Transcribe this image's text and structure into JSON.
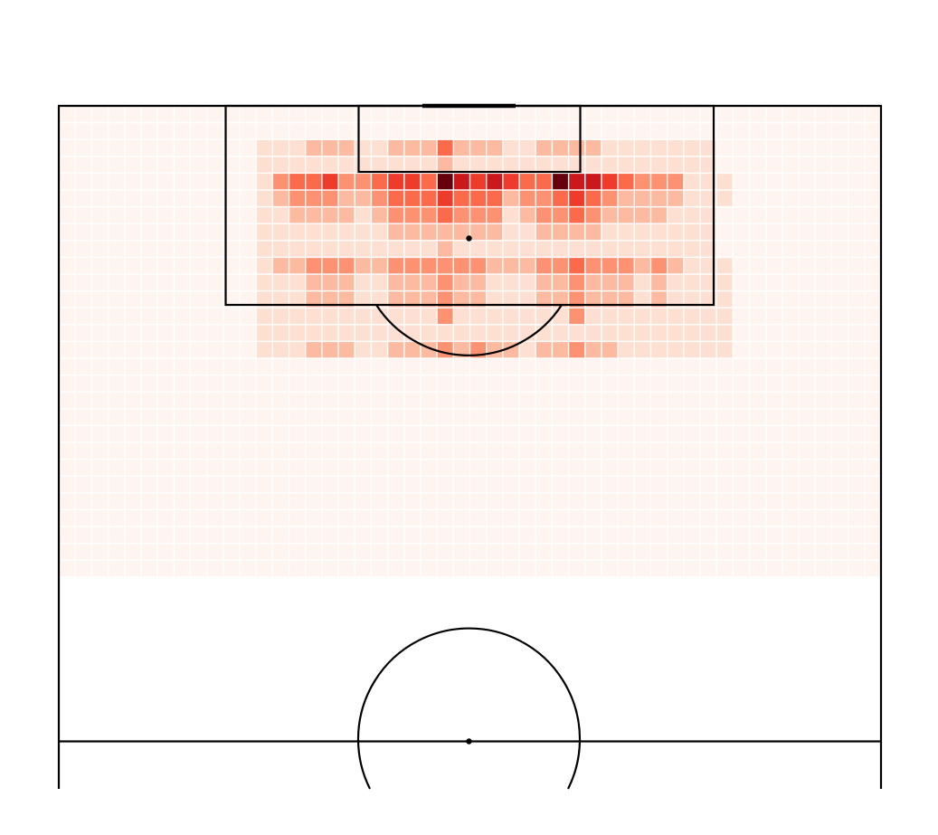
{
  "chart_data": {
    "type": "heatmap",
    "title": "",
    "xlabel": "",
    "ylabel": "",
    "grid": true,
    "colormap": [
      "#fff5f0",
      "#fee0d2",
      "#fcbba1",
      "#fc9272",
      "#fb6a4a",
      "#ef3b2c",
      "#cb181d",
      "#67000d"
    ],
    "n_cols": 50,
    "n_rows": 28,
    "value_range": [
      0,
      7
    ],
    "background_level": 0,
    "cell_levels": [
      {
        "row": 2,
        "cols": [
          12,
          13,
          14,
          15,
          16,
          17,
          18,
          19,
          20,
          21,
          22,
          23,
          24,
          25,
          26,
          27,
          28,
          29,
          30,
          31,
          32,
          33,
          34,
          35,
          36,
          37,
          38,
          39
        ],
        "level": 1
      },
      {
        "row": 2,
        "cols": [
          15,
          16,
          17,
          20,
          21,
          22,
          23,
          24,
          25,
          26,
          29,
          30,
          31,
          32
        ],
        "level": 2
      },
      {
        "row": 2,
        "cols": [
          23
        ],
        "level": 4
      },
      {
        "row": 3,
        "cols": [
          12,
          13,
          14,
          15,
          16,
          17,
          18,
          19,
          20,
          21,
          22,
          23,
          24,
          25,
          26,
          27,
          28,
          29,
          30,
          31,
          32,
          33,
          34,
          35,
          36,
          37,
          38,
          39
        ],
        "level": 1
      },
      {
        "row": 3,
        "cols": [
          23
        ],
        "level": 2
      },
      {
        "row": 4,
        "cols": [
          12,
          13,
          14,
          15,
          16,
          17,
          18,
          19,
          20,
          21,
          22,
          23,
          24,
          25,
          26,
          27,
          28,
          29,
          30,
          31,
          32,
          33,
          34,
          35,
          36,
          37,
          38,
          39,
          40
        ],
        "level": 1
      },
      {
        "row": 4,
        "cols": [
          13,
          14,
          15,
          16,
          17,
          18,
          19,
          20,
          21,
          22,
          23,
          24,
          25,
          26,
          27,
          28,
          29,
          30,
          31,
          32,
          33,
          34,
          35,
          36,
          37
        ],
        "level": 3
      },
      {
        "row": 4,
        "cols": [
          14,
          15,
          16,
          19,
          20,
          21,
          22,
          28,
          29,
          30,
          31,
          33,
          34
        ],
        "level": 4
      },
      {
        "row": 4,
        "cols": [
          16,
          20,
          21,
          24,
          25,
          26,
          27,
          31,
          33
        ],
        "level": 5
      },
      {
        "row": 4,
        "cols": [
          24,
          26,
          31,
          32
        ],
        "level": 6
      },
      {
        "row": 4,
        "cols": [
          23,
          30
        ],
        "level": 7
      },
      {
        "row": 5,
        "cols": [
          12,
          13,
          14,
          15,
          16,
          17,
          18,
          19,
          20,
          21,
          22,
          23,
          24,
          25,
          26,
          27,
          28,
          29,
          30,
          31,
          32,
          33,
          34,
          35,
          36,
          37,
          38,
          39,
          40
        ],
        "level": 1
      },
      {
        "row": 5,
        "cols": [
          13,
          14,
          15,
          16,
          17,
          18,
          19,
          20,
          21,
          22,
          23,
          24,
          25,
          26,
          27,
          28,
          29,
          30,
          31,
          32,
          33,
          34,
          35,
          36,
          37
        ],
        "level": 2
      },
      {
        "row": 5,
        "cols": [
          14,
          15,
          16,
          19,
          20,
          21,
          22,
          23,
          24,
          25,
          26,
          28,
          29,
          30,
          31,
          32,
          33
        ],
        "level": 3
      },
      {
        "row": 5,
        "cols": [
          20,
          21,
          22,
          23,
          24,
          25,
          26,
          30,
          31,
          32
        ],
        "level": 4
      },
      {
        "row": 5,
        "cols": [
          23,
          31
        ],
        "level": 5
      },
      {
        "row": 6,
        "cols": [
          12,
          13,
          14,
          15,
          16,
          17,
          18,
          19,
          20,
          21,
          22,
          23,
          24,
          25,
          26,
          27,
          28,
          29,
          30,
          31,
          32,
          33,
          34,
          35,
          36,
          37,
          38,
          39
        ],
        "level": 1
      },
      {
        "row": 6,
        "cols": [
          14,
          15,
          16,
          17,
          19,
          20,
          21,
          22,
          23,
          24,
          25,
          26,
          28,
          29,
          30,
          31,
          32,
          33,
          34,
          35,
          36
        ],
        "level": 2
      },
      {
        "row": 6,
        "cols": [
          20,
          21,
          22,
          23,
          24,
          25,
          26,
          29,
          30,
          31,
          32
        ],
        "level": 3
      },
      {
        "row": 6,
        "cols": [
          23,
          31
        ],
        "level": 4
      },
      {
        "row": 7,
        "cols": [
          12,
          13,
          14,
          15,
          16,
          17,
          18,
          19,
          20,
          21,
          22,
          23,
          24,
          25,
          26,
          27,
          28,
          29,
          30,
          31,
          32,
          33,
          34,
          35,
          36,
          37,
          38,
          39
        ],
        "level": 1
      },
      {
        "row": 7,
        "cols": [
          20,
          21,
          22,
          23,
          24,
          25,
          26,
          29,
          30,
          31,
          32
        ],
        "level": 2
      },
      {
        "row": 8,
        "cols": [
          12,
          13,
          14,
          15,
          16,
          17,
          18,
          19,
          20,
          21,
          22,
          23,
          24,
          25,
          26,
          27,
          28,
          29,
          30,
          31,
          32,
          33,
          34,
          35,
          36,
          37,
          38,
          39
        ],
        "level": 1
      },
      {
        "row": 8,
        "cols": [
          23
        ],
        "level": 2
      },
      {
        "row": 9,
        "cols": [
          12,
          13,
          14,
          15,
          16,
          17,
          18,
          19,
          20,
          21,
          22,
          23,
          24,
          25,
          26,
          27,
          28,
          29,
          30,
          31,
          32,
          33,
          34,
          35,
          36,
          37,
          38,
          39,
          40
        ],
        "level": 1
      },
      {
        "row": 9,
        "cols": [
          13,
          14,
          15,
          16,
          17,
          18,
          19,
          20,
          21,
          22,
          23,
          24,
          25,
          26,
          27,
          28,
          29,
          30,
          31,
          32,
          33,
          34,
          35,
          36,
          37
        ],
        "level": 2
      },
      {
        "row": 9,
        "cols": [
          15,
          16,
          17,
          20,
          21,
          22,
          23,
          24,
          25,
          29,
          30,
          31,
          32,
          33,
          34,
          36
        ],
        "level": 3
      },
      {
        "row": 9,
        "cols": [
          31
        ],
        "level": 4
      },
      {
        "row": 10,
        "cols": [
          12,
          13,
          14,
          15,
          16,
          17,
          18,
          19,
          20,
          21,
          22,
          23,
          24,
          25,
          26,
          27,
          28,
          29,
          30,
          31,
          32,
          33,
          34,
          35,
          36,
          37,
          38,
          39,
          40
        ],
        "level": 1
      },
      {
        "row": 10,
        "cols": [
          15,
          16,
          17,
          20,
          21,
          22,
          23,
          24,
          25,
          29,
          30,
          31,
          32,
          33,
          34,
          36
        ],
        "level": 2
      },
      {
        "row": 10,
        "cols": [
          23,
          31
        ],
        "level": 3
      },
      {
        "row": 11,
        "cols": [
          12,
          13,
          14,
          15,
          16,
          17,
          18,
          19,
          20,
          21,
          22,
          23,
          24,
          25,
          26,
          27,
          28,
          29,
          30,
          31,
          32,
          33,
          34,
          35,
          36,
          37,
          38,
          39,
          40
        ],
        "level": 1
      },
      {
        "row": 11,
        "cols": [
          15,
          16,
          17,
          20,
          21,
          22,
          23,
          24,
          25,
          29,
          30,
          31,
          32,
          33,
          34,
          36
        ],
        "level": 2
      },
      {
        "row": 11,
        "cols": [
          23,
          31
        ],
        "level": 3
      },
      {
        "row": 12,
        "cols": [
          12,
          13,
          14,
          15,
          16,
          17,
          18,
          19,
          20,
          21,
          22,
          23,
          24,
          25,
          26,
          27,
          28,
          29,
          30,
          31,
          32,
          33,
          34,
          35,
          36,
          37,
          38,
          39,
          40
        ],
        "level": 1
      },
      {
        "row": 12,
        "cols": [
          23,
          31
        ],
        "level": 3
      },
      {
        "row": 13,
        "cols": [
          12,
          13,
          14,
          15,
          16,
          17,
          18,
          19,
          20,
          21,
          22,
          23,
          24,
          25,
          26,
          27,
          28,
          29,
          30,
          31,
          32,
          33,
          34,
          35,
          36,
          37,
          38,
          39,
          40
        ],
        "level": 1
      },
      {
        "row": 14,
        "cols": [
          12,
          13,
          14,
          15,
          16,
          17,
          18,
          19,
          20,
          21,
          22,
          23,
          24,
          25,
          26,
          27,
          28,
          29,
          30,
          31,
          32,
          33,
          34,
          35,
          36,
          37,
          38,
          39,
          40
        ],
        "level": 1
      },
      {
        "row": 14,
        "cols": [
          23,
          25,
          31
        ],
        "level": 3
      },
      {
        "row": 14,
        "cols": [
          15,
          16,
          17,
          20,
          21,
          22,
          24,
          26,
          27,
          29,
          30,
          32,
          33
        ],
        "level": 2
      }
    ]
  },
  "pitch": {
    "line_color": "#000000",
    "spot_color": "#000000"
  }
}
